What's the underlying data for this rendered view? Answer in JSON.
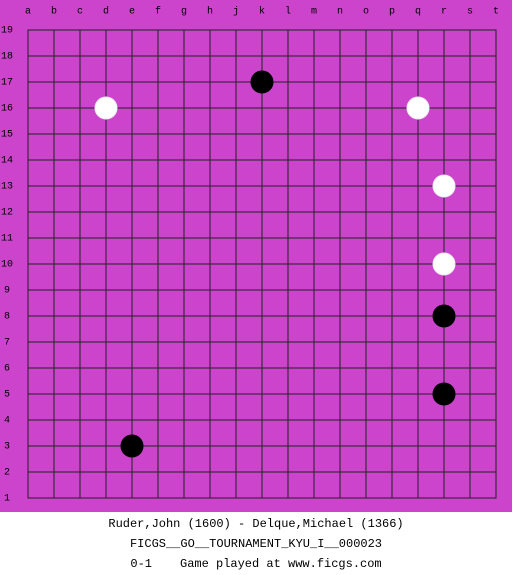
{
  "board": {
    "columns": [
      "a",
      "b",
      "c",
      "d",
      "e",
      "f",
      "g",
      "h",
      "j",
      "k",
      "l",
      "m",
      "n",
      "o",
      "p",
      "q",
      "r",
      "s",
      "t"
    ],
    "rows": [
      19,
      18,
      17,
      16,
      15,
      14,
      13,
      12,
      11,
      10,
      9,
      8,
      7,
      6,
      5,
      4,
      3,
      2,
      1
    ],
    "stones": [
      {
        "color": "black",
        "col": "k",
        "row": 17
      },
      {
        "color": "white",
        "col": "d",
        "row": 16
      },
      {
        "color": "white",
        "col": "q",
        "row": 16
      },
      {
        "color": "white",
        "col": "r",
        "row": 13
      },
      {
        "color": "white",
        "col": "r",
        "row": 10
      },
      {
        "color": "black",
        "col": "r",
        "row": 8
      },
      {
        "color": "black",
        "col": "r",
        "row": 5
      },
      {
        "color": "black",
        "col": "e",
        "row": 3
      }
    ]
  },
  "footer": {
    "players": "Ruder,John (1600) - Delque,Michael (1366)",
    "event": "FICGS__GO__TOURNAMENT_KYU_I__000023",
    "result": "0-1",
    "note": "Game played at www.ficgs.com"
  }
}
